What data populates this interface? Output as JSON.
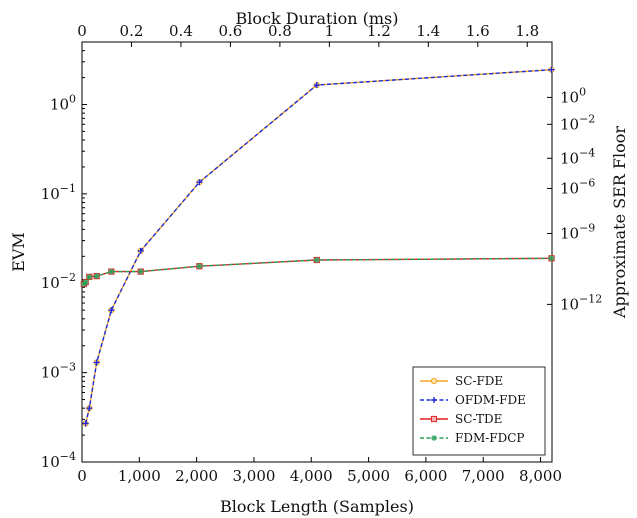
{
  "chart_data": {
    "type": "line",
    "xlabel": "Block Length (Samples)",
    "x2label": "Block Duration (ms)",
    "ylabel": "EVM",
    "y2label": "Approximate SER Floor",
    "y_scale": "log",
    "xlim": [
      0,
      8200
    ],
    "x2lim": [
      0,
      1.9
    ],
    "ylim": [
      0.0001,
      5
    ],
    "x_ticks": [
      0,
      1000,
      2000,
      3000,
      4000,
      5000,
      6000,
      7000,
      8000
    ],
    "x_tick_labels": [
      "0",
      "1,000",
      "2,000",
      "3,000",
      "4,000",
      "5,000",
      "6,000",
      "7,000",
      "8,000"
    ],
    "x2_ticks": [
      0,
      0.2,
      0.4,
      0.6,
      0.8,
      1,
      1.2,
      1.4,
      1.6,
      1.8
    ],
    "x2_tick_labels": [
      "0",
      "0.2",
      "0.4",
      "0.6",
      "0.8",
      "1",
      "1.2",
      "1.4",
      "1.6",
      "1.8"
    ],
    "y_ticks": [
      0.0001,
      0.001,
      0.01,
      0.1,
      1
    ],
    "y_tick_labels": [
      {
        "base": "10",
        "exp": "−4"
      },
      {
        "base": "10",
        "exp": "−3"
      },
      {
        "base": "10",
        "exp": "−2"
      },
      {
        "base": "10",
        "exp": "−1"
      },
      {
        "base": "10",
        "exp": "0"
      }
    ],
    "y2_ticks": [
      {
        "evm": 1.2,
        "base": "10",
        "exp": "0"
      },
      {
        "evm": 0.6,
        "base": "10",
        "exp": "−2"
      },
      {
        "evm": 0.25,
        "base": "10",
        "exp": "−4"
      },
      {
        "evm": 0.115,
        "base": "10",
        "exp": "−6"
      },
      {
        "evm": 0.036,
        "base": "10",
        "exp": "−9"
      },
      {
        "evm": 0.0058,
        "base": "10",
        "exp": "−12"
      }
    ],
    "series": [
      {
        "name": "SC-FDE",
        "color": "#f5a623",
        "dash": "solid",
        "marker": "circle",
        "x": [
          64,
          128,
          256,
          512,
          1024,
          2048,
          4096,
          8192
        ],
        "y": [
          0.00027,
          0.0004,
          0.0013,
          0.005,
          0.023,
          0.135,
          1.65,
          2.45
        ]
      },
      {
        "name": "OFDM-FDE",
        "color": "#1f2bdb",
        "dash": "dashed",
        "marker": "plus",
        "x": [
          64,
          128,
          256,
          512,
          1024,
          2048,
          4096,
          8192
        ],
        "y": [
          0.00027,
          0.0004,
          0.0013,
          0.005,
          0.023,
          0.135,
          1.65,
          2.45
        ]
      },
      {
        "name": "SC-TDE",
        "color": "#e02020",
        "dash": "solid",
        "marker": "square",
        "x": [
          32,
          64,
          128,
          256,
          512,
          1024,
          2048,
          4096,
          8192
        ],
        "y": [
          0.0098,
          0.0103,
          0.0118,
          0.012,
          0.0135,
          0.0135,
          0.0155,
          0.0182,
          0.019
        ]
      },
      {
        "name": "FDM-FDCP",
        "color": "#2ca05a",
        "dash": "dashed",
        "marker": "star",
        "x": [
          32,
          64,
          128,
          256,
          512,
          1024,
          2048,
          4096,
          8192
        ],
        "y": [
          0.0098,
          0.0103,
          0.0118,
          0.012,
          0.0135,
          0.0135,
          0.0155,
          0.0182,
          0.019
        ]
      }
    ],
    "legend_position": "bottom-right",
    "grid": false
  }
}
